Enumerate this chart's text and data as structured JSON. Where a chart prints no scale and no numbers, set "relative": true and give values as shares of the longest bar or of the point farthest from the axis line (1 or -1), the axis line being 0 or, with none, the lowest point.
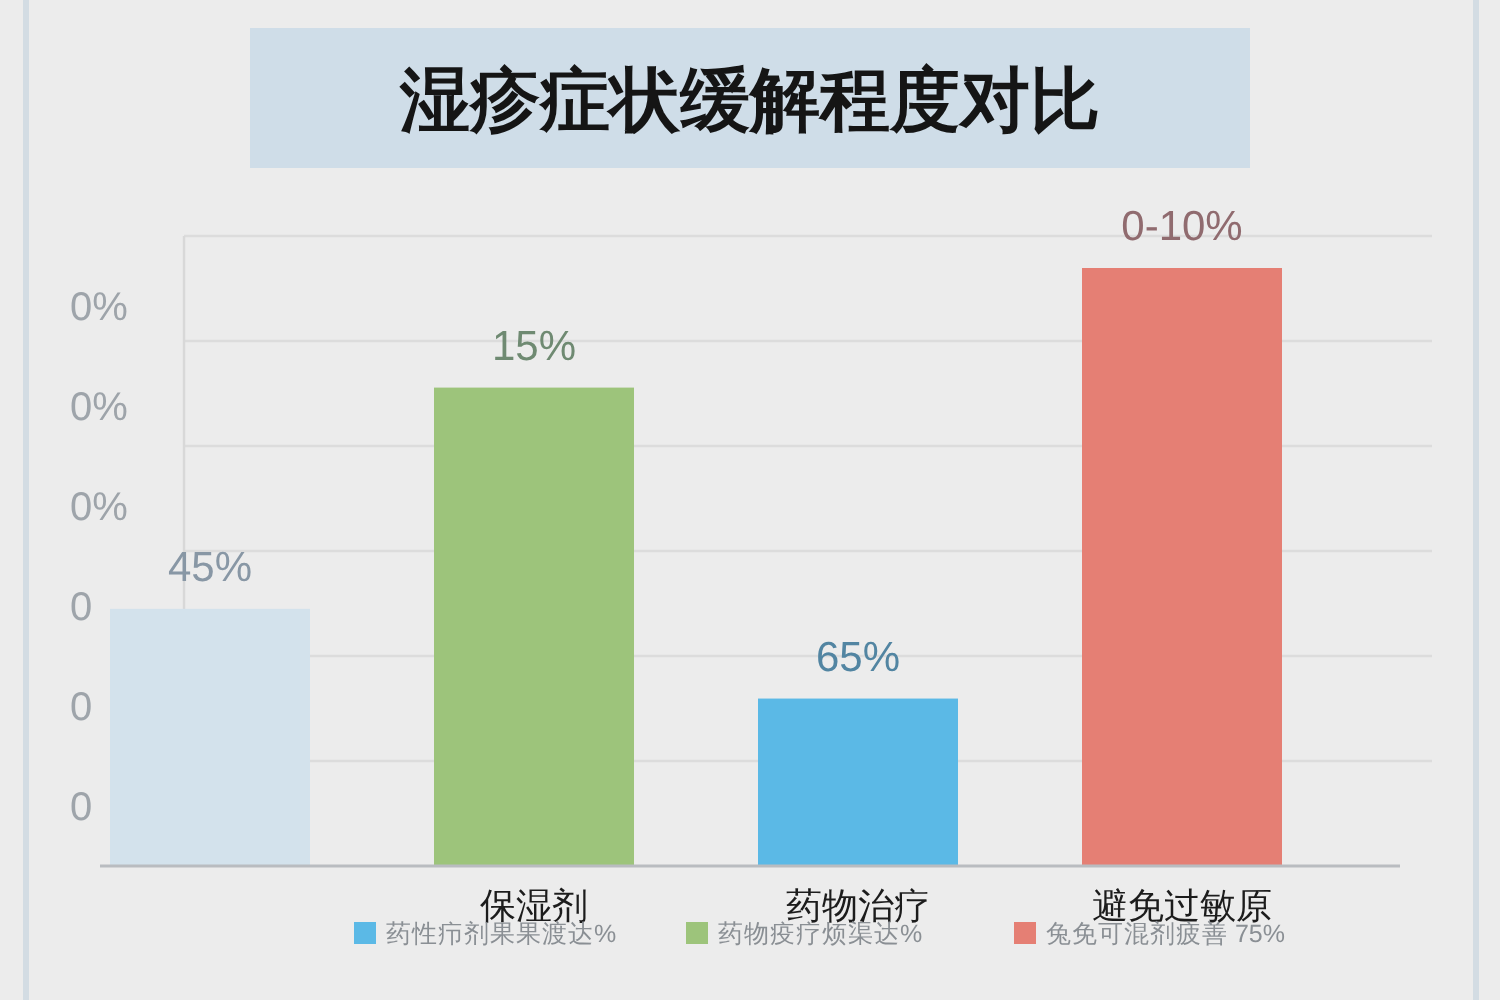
{
  "chart_data": {
    "type": "bar",
    "title": "湿疹症状缓解程度对比",
    "categories": [
      null,
      "保湿剂",
      "药物治疗",
      "避免过敏原"
    ],
    "relative": true,
    "stacked": true,
    "grid": true,
    "legend": "bottom",
    "series": [
      {
        "name": "药性疖剂果果渡达%",
        "color": "#5bb9e6",
        "values": [
          null,
          null,
          0.28,
          null
        ]
      },
      {
        "name": "药物疫疗烦渠达%",
        "color": "#9dc47b",
        "values": [
          null,
          0.8,
          null,
          null
        ]
      },
      {
        "name": "兔免可混剂疲善 75%",
        "color": "#e57f74",
        "values": [
          null,
          null,
          null,
          1
        ]
      },
      {
        "color": "#d3e2ec",
        "values": [
          0.43,
          null,
          null,
          null
        ]
      }
    ],
    "annotations": [
      "0%",
      "0%",
      "0%",
      "0",
      "0",
      "0",
      {
        "text": "45%",
        "y": 0.43
      },
      {
        "text": "15%",
        "x": "保湿剂",
        "y": 0.8
      },
      {
        "text": "65%",
        "x": "药物治疗",
        "y": 0.28
      },
      {
        "text": "0-10%",
        "x": "避免过敏原",
        "y": 1
      }
    ]
  }
}
